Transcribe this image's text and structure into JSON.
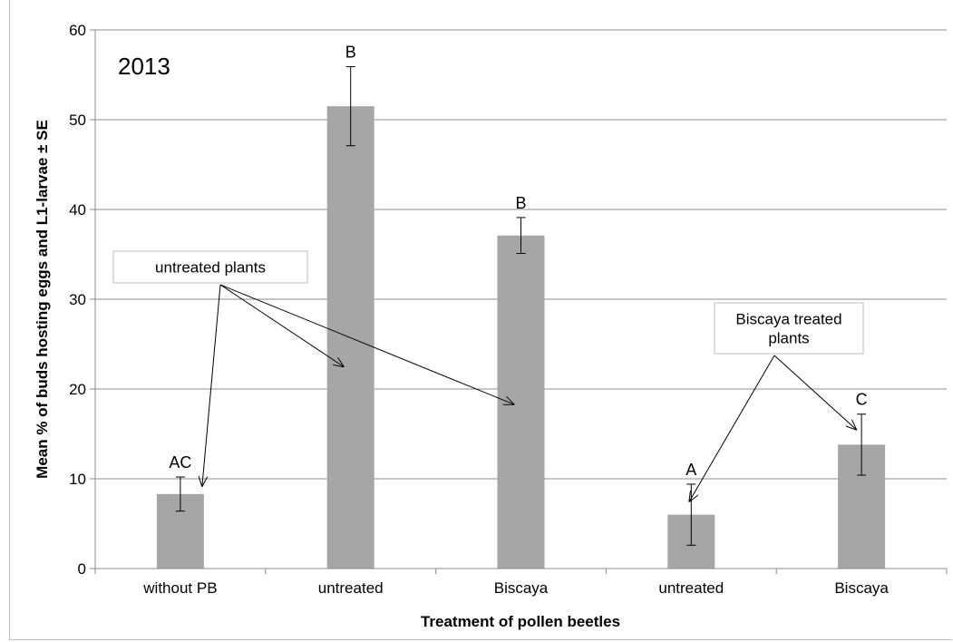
{
  "chart_data": {
    "type": "bar",
    "title": "2013",
    "xlabel": "Treatment of pollen beetles",
    "ylabel": "Mean % of buds hosting eggs and L1-larvae ± SE",
    "categories": [
      "without PB",
      "untreated",
      "Biscaya",
      "untreated",
      "Biscaya"
    ],
    "values": [
      8.3,
      51.5,
      37.1,
      6.0,
      13.8
    ],
    "errors": [
      1.9,
      4.4,
      2.0,
      3.4,
      3.4
    ],
    "significance": [
      "AC",
      "B",
      "B",
      "A",
      "C"
    ],
    "ylim": [
      0,
      60
    ],
    "yticks": [
      "0",
      "10",
      "20",
      "30",
      "40",
      "50",
      "60"
    ],
    "grid": true,
    "bar_color": "#a6a6a6",
    "annotations": [
      {
        "text": [
          "untreated plants"
        ],
        "points_to": [
          0,
          1,
          2
        ]
      },
      {
        "text": [
          "Biscaya treated",
          "plants"
        ],
        "points_to": [
          3,
          4
        ]
      }
    ]
  }
}
